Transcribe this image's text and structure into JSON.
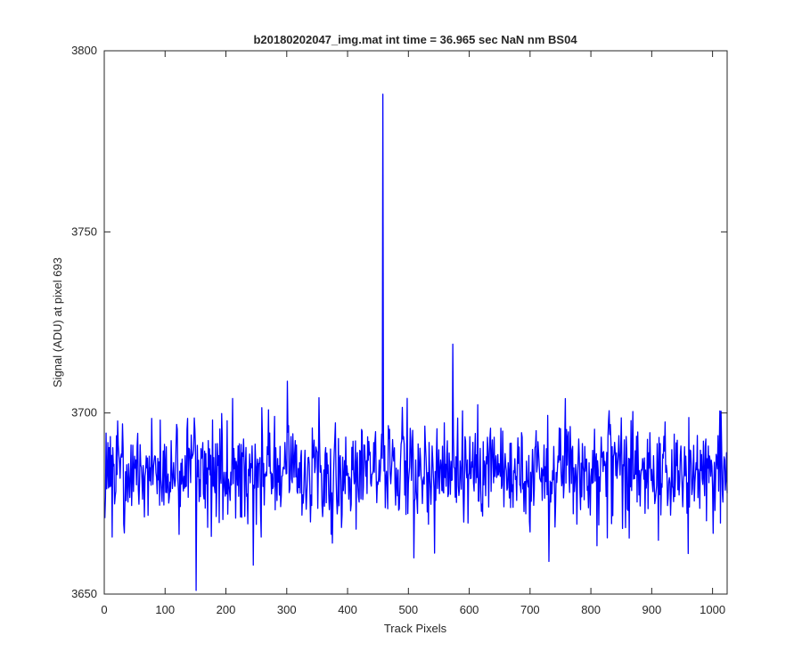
{
  "chart_data": {
    "type": "line",
    "title": "b20180202047_img.mat int time = 36.965 sec  NaN nm BS04",
    "xlabel": "Track Pixels",
    "ylabel": "Signal (ADU) at pixel 693",
    "xlim": [
      0,
      1024
    ],
    "ylim": [
      3650,
      3800
    ],
    "xticks": [
      0,
      100,
      200,
      300,
      400,
      500,
      600,
      700,
      800,
      900,
      1000
    ],
    "yticks": [
      3650,
      3700,
      3750,
      3800
    ],
    "xtick_labels": [
      "0",
      "100",
      "200",
      "300",
      "400",
      "500",
      "600",
      "700",
      "800",
      "900",
      "1000"
    ],
    "ytick_labels": [
      "3650",
      "3700",
      "3750",
      "3800"
    ],
    "grid": false,
    "series": [
      {
        "color": "#0000ff",
        "baseline_mean": 3684,
        "noise_sigma": 7,
        "x_count": 1024,
        "notable_points": [
          {
            "x": 151,
            "y": 3651
          },
          {
            "x": 245,
            "y": 3658
          },
          {
            "x": 458,
            "y": 3788
          },
          {
            "x": 509,
            "y": 3660
          },
          {
            "x": 573,
            "y": 3719
          },
          {
            "x": 731,
            "y": 3659
          }
        ]
      }
    ]
  }
}
